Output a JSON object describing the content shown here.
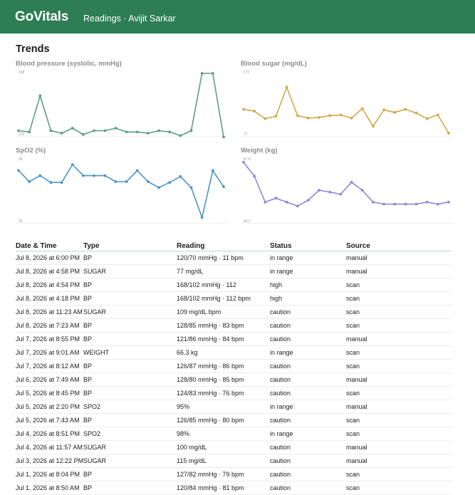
{
  "header": {
    "brand": "GoVitals",
    "subtitle": "Readings · Avijit Sarkar"
  },
  "trends": {
    "title": "Trends"
  },
  "chart_data": [
    {
      "type": "line",
      "title": "Blood pressure (systolic, mmHg)",
      "color": "#5a9e88",
      "ylim": [
        120,
        168
      ],
      "yticks": [
        "168",
        "120"
      ],
      "values": [
        122,
        121,
        150,
        122,
        120,
        124,
        119,
        122,
        122,
        124,
        121,
        121,
        120,
        122,
        121,
        118,
        122,
        168,
        168,
        117
      ]
    },
    {
      "type": "line",
      "title": "Blood sugar (mg/dL)",
      "color": "#cfa94a",
      "ylim": [
        77,
        172
      ],
      "yticks": [
        "172",
        "77"
      ],
      "values": [
        115,
        112,
        100,
        104,
        150,
        105,
        101,
        102,
        105,
        106,
        101,
        116,
        88,
        114,
        110,
        115,
        109,
        100,
        106,
        77
      ]
    },
    {
      "type": "line",
      "title": "SpO2 (%)",
      "color": "#4a95c8",
      "ylim": [
        92,
        99
      ],
      "yticks": [
        "99",
        "92"
      ],
      "values": [
        97.8,
        96.5,
        97.2,
        96.4,
        96.4,
        98.5,
        97.2,
        97.2,
        97.2,
        96.5,
        96.5,
        97.8,
        96.5,
        95.8,
        96.4,
        97.1,
        95.8,
        92.3,
        97.8,
        95.9
      ]
    },
    {
      "type": "line",
      "title": "Weight (kg)",
      "color": "#9484d6",
      "ylim": [
        66.1,
        67.6
      ],
      "yticks": [
        "67.6",
        "66.1"
      ],
      "values": [
        67.55,
        67.2,
        66.55,
        66.65,
        66.55,
        66.45,
        66.6,
        66.85,
        66.8,
        66.75,
        67.05,
        66.85,
        66.55,
        66.5,
        66.5,
        66.5,
        66.5,
        66.55,
        66.5,
        66.55
      ]
    }
  ],
  "table": {
    "headers": [
      "Date & Time",
      "Type",
      "Reading",
      "Status",
      "Source"
    ],
    "rows": [
      [
        "Jul 8, 2026 at 6:00 PM",
        "BP",
        "120/70 mmHg · 11 bpm",
        "in range",
        "manual"
      ],
      [
        "Jul 8, 2026 at 4:58 PM",
        "SUGAR",
        "77 mg/dL",
        "in range",
        "manual"
      ],
      [
        "Jul 8, 2026 at 4:54 PM",
        "BP",
        "168/102 mmHg · 112",
        "high",
        "scan"
      ],
      [
        "Jul 8, 2026 at 4:18 PM",
        "BP",
        "168/102 mmHg · 112 bpm",
        "high",
        "scan"
      ],
      [
        "Jul 8, 2026 at 11:23 AM",
        "SUGAR",
        "109 mg/dL bpm",
        "caution",
        "scan"
      ],
      [
        "Jul 8, 2026 at 7:23 AM",
        "BP",
        "128/85 mmHg · 83 bpm",
        "caution",
        "scan"
      ],
      [
        "Jul 7, 2026 at 8:55 PM",
        "BP",
        "121/86 mmHg · 84 bpm",
        "caution",
        "manual"
      ],
      [
        "Jul 7, 2026 at 9:01 AM",
        "WEIGHT",
        "66.3 kg",
        "in range",
        "scan"
      ],
      [
        "Jul 7, 2026 at 8:12 AM",
        "BP",
        "126/87 mmHg · 86 bpm",
        "caution",
        "scan"
      ],
      [
        "Jul 6, 2026 at 7:49 AM",
        "BP",
        "128/80 mmHg · 85 bpm",
        "caution",
        "manual"
      ],
      [
        "Jul 5, 2026 at 8:45 PM",
        "BP",
        "124/83 mmHg · 76 bpm",
        "caution",
        "scan"
      ],
      [
        "Jul 5, 2026 at 2:20 PM",
        "SPO2",
        "95%",
        "in range",
        "manual"
      ],
      [
        "Jul 5, 2026 at 7:43 AM",
        "BP",
        "126/85 mmHg · 80 bpm",
        "caution",
        "scan"
      ],
      [
        "Jul 4, 2026 at 8:51 PM",
        "SPO2",
        "98%",
        "in range",
        "scan"
      ],
      [
        "Jul 4, 2026 at 11:57 AM",
        "SUGAR",
        "100 mg/dL",
        "caution",
        "manual"
      ],
      [
        "Jul 3, 2026 at 12:22 PM",
        "SUGAR",
        "115 mg/dL",
        "caution",
        "manual"
      ],
      [
        "Jul 1, 2026 at 8:04 PM",
        "BP",
        "127/82 mmHg · 79 bpm",
        "caution",
        "scan"
      ],
      [
        "Jul 1, 2026 at 8:50 AM",
        "BP",
        "120/84 mmHg · 81 bpm",
        "caution",
        "scan"
      ]
    ]
  }
}
